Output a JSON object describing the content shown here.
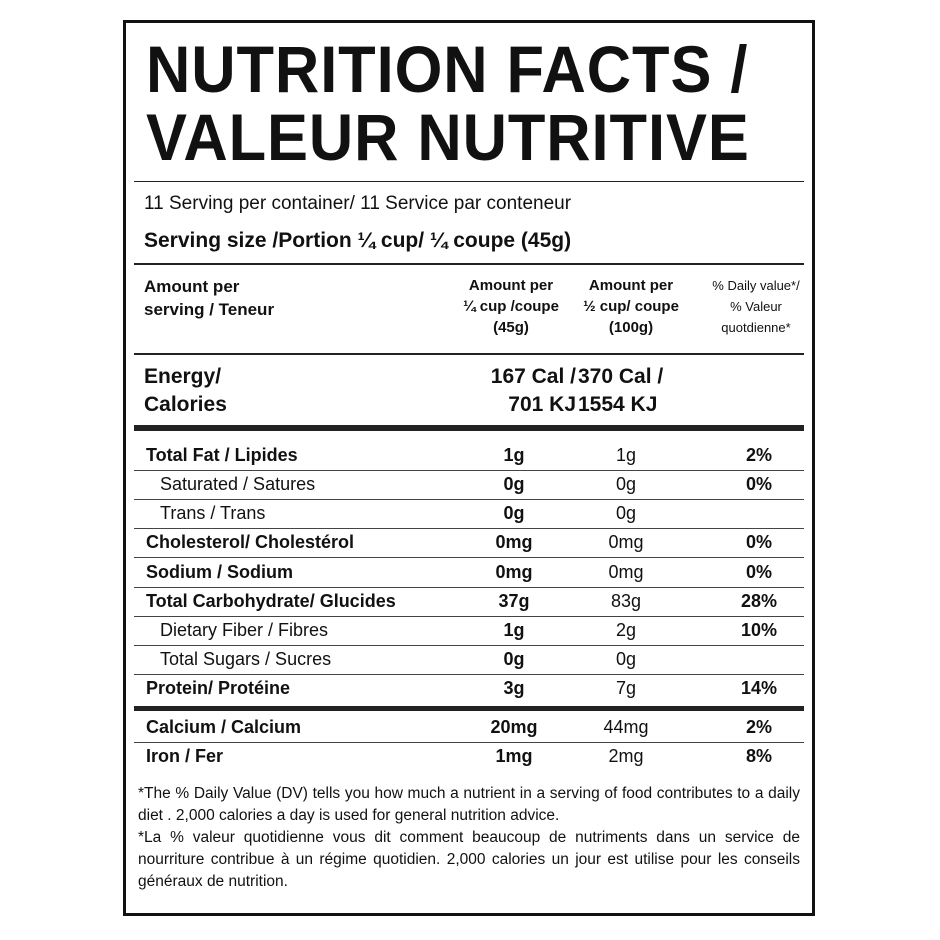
{
  "title": {
    "line1": "NUTRITION FACTS /",
    "line2": "VALEUR NUTRITIVE"
  },
  "servings_per_container": "11 Serving per container/ 11 Service par conteneur",
  "serving_size": "Serving size /Portion ¼ cup/  ¼ coupe (45g)",
  "header": {
    "amount_label": [
      "Amount per",
      "serving / Teneur"
    ],
    "col1": [
      "Amount per",
      "¼ cup /coupe",
      "(45g)"
    ],
    "col2": [
      "Amount per",
      "½ cup/ coupe",
      "(100g)"
    ],
    "col3": [
      "% Daily value*/",
      "% Valeur",
      "quotdienne*"
    ]
  },
  "energy": {
    "label": [
      "Energy/",
      "Calories"
    ],
    "col1": [
      "167 Cal /",
      "701 KJ"
    ],
    "col2": [
      "370 Cal /",
      "1554 KJ"
    ]
  },
  "nutrients": [
    {
      "name": "Total Fat / Lipides",
      "v1": "1g",
      "v2": "1g",
      "dv": "2%"
    },
    {
      "name": "Saturated / Satures",
      "v1": "0g",
      "v2": "0g",
      "dv": "0%"
    },
    {
      "name": "Trans / Trans",
      "v1": "0g",
      "v2": "0g",
      "dv": ""
    },
    {
      "name": "Cholesterol/ Cholestérol",
      "v1": "0mg",
      "v2": "0mg",
      "dv": "0%"
    },
    {
      "name": "Sodium / Sodium",
      "v1": "0mg",
      "v2": "0mg",
      "dv": "0%"
    },
    {
      "name": "Total Carbohydrate/ Glucides",
      "v1": "37g",
      "v2": "83g",
      "dv": "28%"
    },
    {
      "name": "Dietary Fiber  / Fibres",
      "v1": "1g",
      "v2": "2g",
      "dv": "10%"
    },
    {
      "name": "Total Sugars / Sucres",
      "v1": "0g",
      "v2": "0g",
      "dv": ""
    },
    {
      "name": "Protein/ Protéine",
      "v1": "3g",
      "v2": "7g",
      "dv": "14%"
    },
    {
      "name": "Calcium / Calcium",
      "v1": "20mg",
      "v2": "44mg",
      "dv": "2%"
    },
    {
      "name": "Iron / Fer",
      "v1": "1mg",
      "v2": "2mg",
      "dv": "8%"
    }
  ],
  "footnote_en": "*The % Daily Value (DV) tells you how much a nutrient in a serving of food contributes to a daily diet . 2,000 calories a day is used for general nutrition advice.",
  "footnote_fr": "*La  % valeur quotidienne vous dit comment beaucoup de nutriments dans un service de nourriture contribue à un régime quotidien. 2,000 calories un jour est utilise pour les conseils généraux de nutrition."
}
